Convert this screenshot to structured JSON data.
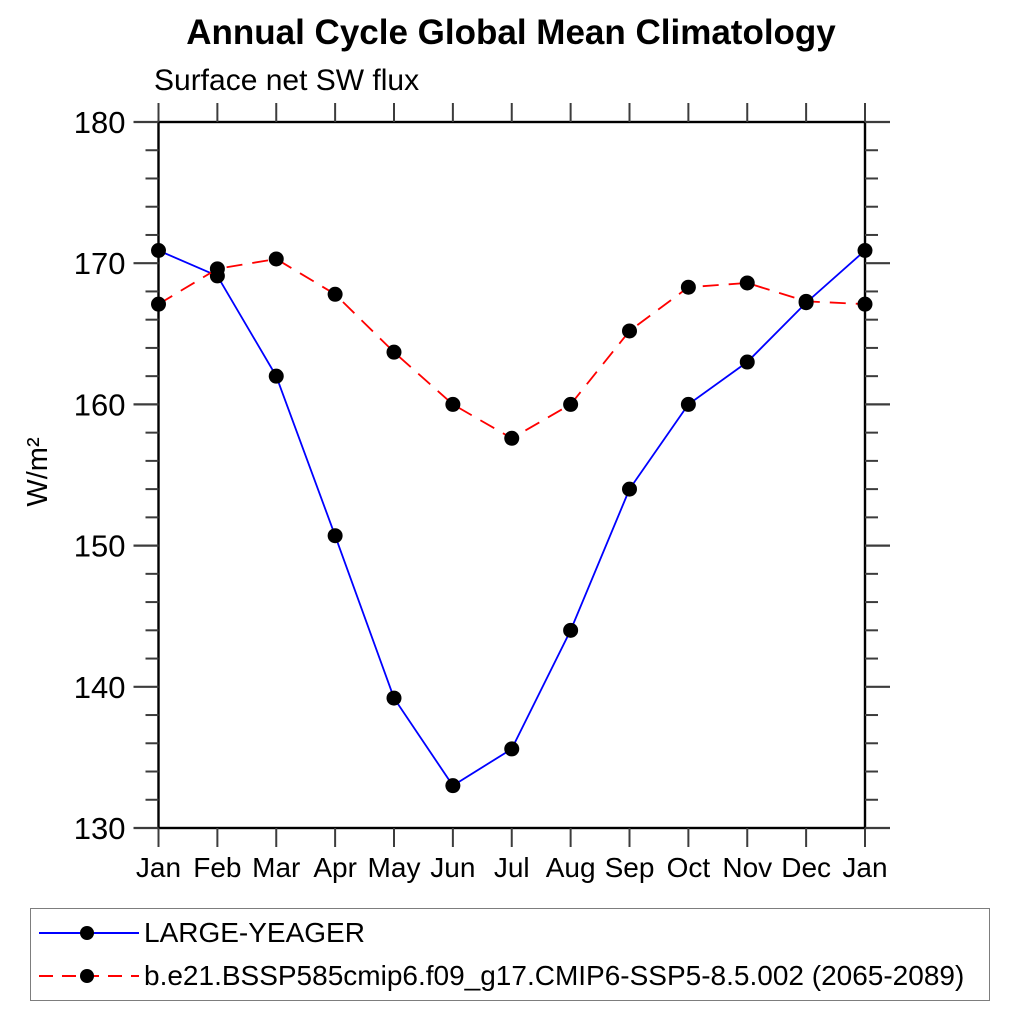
{
  "title": "Annual Cycle Global Mean Climatology",
  "subtitle": "Surface net SW flux",
  "chart_data": {
    "type": "line",
    "categories": [
      "Jan",
      "Feb",
      "Mar",
      "Apr",
      "May",
      "Jun",
      "Jul",
      "Aug",
      "Sep",
      "Oct",
      "Nov",
      "Dec",
      "Jan"
    ],
    "ylabel": "W/m²",
    "xlabel": "",
    "ylim": [
      130,
      180
    ],
    "yticks_major": [
      130,
      140,
      150,
      160,
      170,
      180
    ],
    "ytick_minor_step": 2,
    "grid": false,
    "legend_position": "bottom-box",
    "series": [
      {
        "name": "LARGE-YEAGER",
        "color": "#0000ff",
        "line_style": "solid",
        "marker": "filled-circle",
        "marker_color": "#000000",
        "values": [
          170.9,
          169.1,
          162.0,
          150.7,
          139.2,
          133.0,
          135.6,
          144.0,
          154.0,
          160.0,
          163.0,
          167.2,
          170.9
        ]
      },
      {
        "name": "b.e21.BSSP585cmip6.f09_g17.CMIP6-SSP5-8.5.002 (2065-2089)",
        "color": "#ff0000",
        "line_style": "dashed",
        "marker": "filled-circle",
        "marker_color": "#000000",
        "values": [
          167.1,
          169.6,
          170.3,
          167.8,
          163.7,
          160.0,
          157.6,
          160.0,
          165.2,
          168.3,
          168.6,
          167.3,
          167.1
        ]
      }
    ]
  }
}
